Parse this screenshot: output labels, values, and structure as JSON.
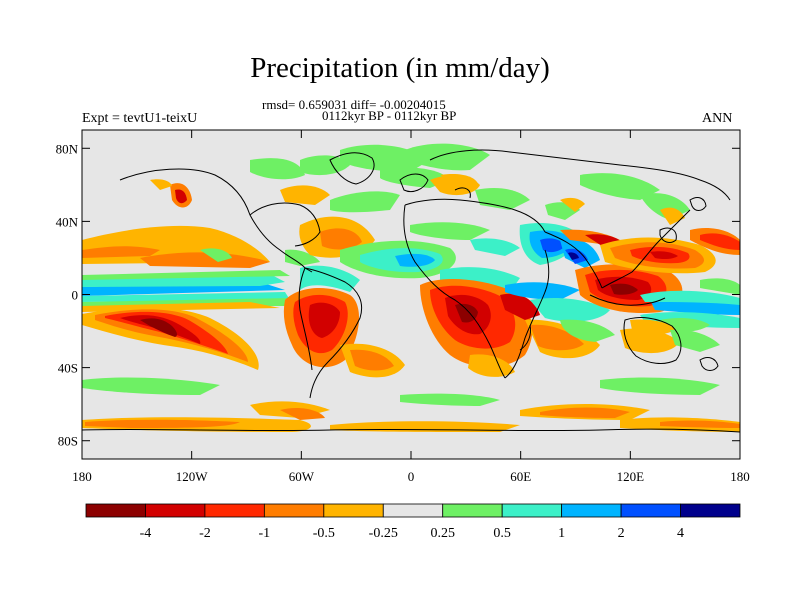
{
  "header": {
    "title": "Precipitation (in mm/day)",
    "stats": "rmsd= 0.659031 diff= -0.00204015",
    "period": "0112kyr BP - 0112kyr BP",
    "experiment": "Expt = tevtU1-teixU",
    "season": "ANN"
  },
  "map": {
    "lat_ticks": [
      "80N",
      "40N",
      "0",
      "40S",
      "80S"
    ],
    "lon_ticks": [
      "180",
      "120W",
      "60W",
      "0",
      "60E",
      "120E",
      "180"
    ],
    "background_color": "#e6e6e6"
  },
  "colorbar": {
    "labels": [
      "-4",
      "-2",
      "-1",
      "-0.5",
      "-0.25",
      "0.25",
      "0.5",
      "1",
      "2",
      "4"
    ],
    "colors": [
      "#8c0000",
      "#d20000",
      "#ff2800",
      "#ff7d00",
      "#ffb400",
      "#e6e6e6",
      "#6ef064",
      "#3cf0c8",
      "#00b4ff",
      "#0050ff",
      "#00008c"
    ]
  }
}
